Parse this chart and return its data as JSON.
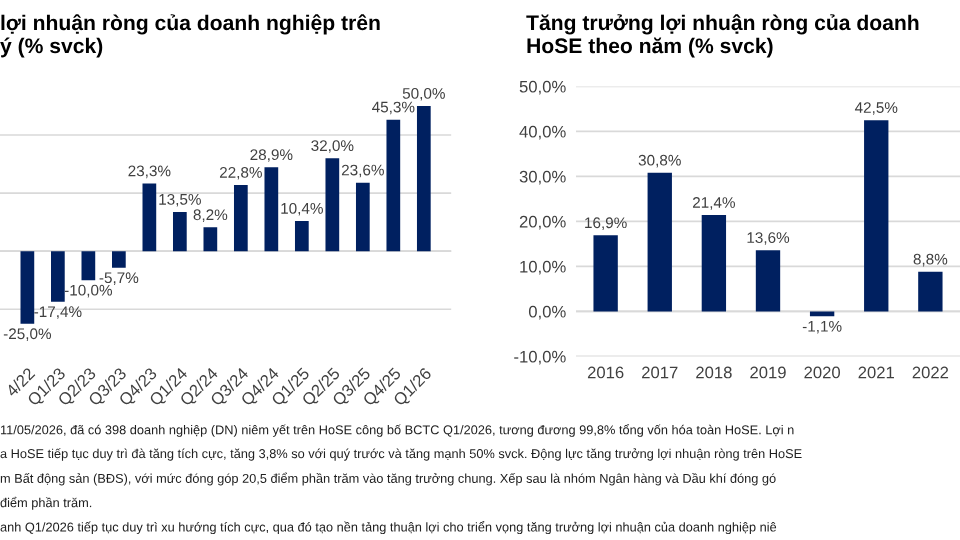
{
  "chart_data": [
    {
      "type": "bar",
      "title": "lợi nhuận ròng của doanh nghiệp trên\ný (% svck)",
      "categories": [
        "4/22",
        "Q1/23",
        "Q2/23",
        "Q3/23",
        "Q4/23",
        "Q1/24",
        "Q2/24",
        "Q3/24",
        "Q4/24",
        "Q1/25",
        "Q2/25",
        "Q3/25",
        "Q4/25",
        "Q1/26"
      ],
      "values": [
        -25.0,
        -17.4,
        -10.0,
        -5.7,
        23.3,
        13.5,
        8.2,
        22.8,
        28.9,
        10.4,
        32.0,
        23.6,
        45.3,
        50.0
      ],
      "value_labels": [
        "-25,0%",
        "-17,4%",
        "-10,0%",
        "-5,7%",
        "23,3%",
        "13,5%",
        "8,2%",
        "22,8%",
        "28,9%",
        "10,4%",
        "32,0%",
        "23,6%",
        "45,3%",
        "50,0%"
      ],
      "color": "#002060",
      "grid": "y",
      "tick_labels": "x"
    },
    {
      "type": "bar",
      "title": "Tăng trưởng lợi nhuận ròng của doanh\nHoSE theo năm (% svck)",
      "categories": [
        "2016",
        "2017",
        "2018",
        "2019",
        "2020",
        "2021",
        "2022"
      ],
      "values": [
        16.9,
        30.8,
        21.4,
        13.6,
        -1.1,
        42.5,
        8.8
      ],
      "value_labels": [
        "16,9%",
        "30,8%",
        "21,4%",
        "13,6%",
        "-1,1%",
        "42,5%",
        "8,8%"
      ],
      "color": "#002060",
      "grid": "y",
      "ylim": [
        -10,
        50
      ],
      "yticks": [
        {
          "value": -10,
          "label": "-10,0%"
        },
        {
          "value": 0,
          "label": "0,0%"
        },
        {
          "value": 10,
          "label": "10,0%"
        },
        {
          "value": 20,
          "label": "20,0%"
        },
        {
          "value": 30,
          "label": "30,0%"
        },
        {
          "value": 40,
          "label": "40,0%"
        },
        {
          "value": 50,
          "label": "50,0%"
        }
      ]
    },
    {
      "type": "other",
      "annotations": [
        "11/05/2026, đã có 398 doanh nghiệp (DN) niêm yết trên HoSE công bố BCTC Q1/2026, tương đương 99,8% tổng vốn hóa toàn HoSE. Lợi n",
        "a HoSE tiếp tục duy trì đà tăng tích cực, tăng 3,8% so với quý trước và tăng mạnh 50% svck. Động lực tăng trưởng lợi nhuận ròng trên HoSE",
        "m Bất động sản (BĐS), với mức đóng góp 20,5 điểm phần trăm vào tăng trưởng chung. Xếp sau là nhóm Ngân hàng và Dầu khí đóng gó",
        "điểm phần trăm.",
        "anh Q1/2026 tiếp tục duy trì xu hướng tích cực, qua đó tạo nền tảng thuận lợi cho triển vọng tăng trưởng lợi nhuận của doanh nghiệp niê"
      ]
    }
  ]
}
